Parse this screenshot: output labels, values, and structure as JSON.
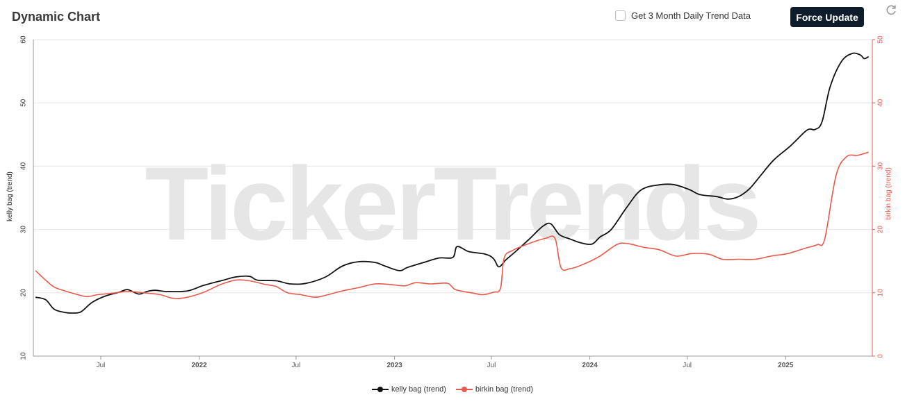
{
  "header": {
    "title": "Dynamic Chart",
    "checkbox_label": "Get 3 Month Daily Trend Data",
    "force_update_label": "Force Update"
  },
  "watermark": "TickerTrends",
  "colors": {
    "kelly": "#111111",
    "birkin": "#e8594a",
    "grid": "#e6e6e6"
  },
  "chart_data": {
    "type": "line",
    "title": "Dynamic Chart",
    "x_tick_labels": [
      "Jul",
      "2022",
      "Jul",
      "2023",
      "Jul",
      "2024",
      "Jul",
      "2025"
    ],
    "y_left": {
      "label": "kelly bag  (trend)",
      "ticks": [
        10,
        20,
        30,
        40,
        50,
        60
      ],
      "range": [
        10,
        60
      ]
    },
    "y_right": {
      "label": "birkin bag  (trend)",
      "ticks": [
        0,
        10,
        20,
        30,
        40,
        50
      ],
      "range": [
        0,
        50
      ]
    },
    "legend": "bottom-center",
    "series": [
      {
        "name": "kelly bag  (trend)",
        "axis": "left",
        "points": [
          [
            "2021-03-01",
            19.3
          ],
          [
            "2021-03-20",
            18.9
          ],
          [
            "2021-04-05",
            17.4
          ],
          [
            "2021-04-25",
            16.9
          ],
          [
            "2021-05-10",
            16.8
          ],
          [
            "2021-05-25",
            17.0
          ],
          [
            "2021-06-15",
            18.5
          ],
          [
            "2021-07-10",
            19.5
          ],
          [
            "2021-08-05",
            20.1
          ],
          [
            "2021-08-20",
            20.5
          ],
          [
            "2021-09-10",
            19.8
          ],
          [
            "2021-09-25",
            20.2
          ],
          [
            "2021-10-10",
            20.4
          ],
          [
            "2021-11-01",
            20.2
          ],
          [
            "2021-12-10",
            20.3
          ],
          [
            "2022-01-10",
            21.2
          ],
          [
            "2022-02-15",
            22.0
          ],
          [
            "2022-03-10",
            22.5
          ],
          [
            "2022-04-05",
            22.6
          ],
          [
            "2022-04-20",
            22.0
          ],
          [
            "2022-05-25",
            21.9
          ],
          [
            "2022-06-20",
            21.4
          ],
          [
            "2022-07-20",
            21.5
          ],
          [
            "2022-08-25",
            22.5
          ],
          [
            "2022-09-25",
            24.2
          ],
          [
            "2022-10-25",
            24.9
          ],
          [
            "2022-11-25",
            24.8
          ],
          [
            "2022-12-15",
            24.2
          ],
          [
            "2023-01-10",
            23.5
          ],
          [
            "2023-01-25",
            24.0
          ],
          [
            "2023-02-25",
            24.8
          ],
          [
            "2023-03-25",
            25.5
          ],
          [
            "2023-04-20",
            25.6
          ],
          [
            "2023-04-28",
            27.3
          ],
          [
            "2023-05-20",
            26.5
          ],
          [
            "2023-06-20",
            26.1
          ],
          [
            "2023-07-05",
            25.4
          ],
          [
            "2023-07-15",
            24.1
          ],
          [
            "2023-07-28",
            25.2
          ],
          [
            "2023-08-15",
            26.5
          ],
          [
            "2023-09-10",
            28.5
          ],
          [
            "2023-10-05",
            30.5
          ],
          [
            "2023-10-20",
            30.9
          ],
          [
            "2023-11-05",
            29.2
          ],
          [
            "2023-11-25",
            28.5
          ],
          [
            "2023-12-15",
            27.9
          ],
          [
            "2024-01-05",
            27.7
          ],
          [
            "2024-01-20",
            28.8
          ],
          [
            "2024-02-10",
            30.0
          ],
          [
            "2024-03-10",
            33.5
          ],
          [
            "2024-04-05",
            36.2
          ],
          [
            "2024-05-05",
            37.0
          ],
          [
            "2024-06-05",
            37.1
          ],
          [
            "2024-07-05",
            36.3
          ],
          [
            "2024-07-25",
            35.5
          ],
          [
            "2024-08-25",
            35.2
          ],
          [
            "2024-09-15",
            34.8
          ],
          [
            "2024-10-05",
            35.2
          ],
          [
            "2024-10-25",
            36.4
          ],
          [
            "2024-11-15",
            38.5
          ],
          [
            "2024-12-10",
            41.0
          ],
          [
            "2025-01-10",
            43.2
          ],
          [
            "2025-02-10",
            45.7
          ],
          [
            "2025-02-25",
            45.8
          ],
          [
            "2025-03-10",
            47.0
          ],
          [
            "2025-03-25",
            52.5
          ],
          [
            "2025-04-15",
            56.5
          ],
          [
            "2025-05-05",
            57.8
          ],
          [
            "2025-05-20",
            57.6
          ],
          [
            "2025-05-28",
            57.0
          ],
          [
            "2025-06-05",
            57.3
          ]
        ]
      },
      {
        "name": "birkin bag  (trend)",
        "axis": "right",
        "points": [
          [
            "2021-03-01",
            13.5
          ],
          [
            "2021-03-20",
            12.0
          ],
          [
            "2021-04-05",
            10.9
          ],
          [
            "2021-04-25",
            10.3
          ],
          [
            "2021-05-15",
            9.8
          ],
          [
            "2021-06-05",
            9.4
          ],
          [
            "2021-06-25",
            9.7
          ],
          [
            "2021-07-20",
            9.9
          ],
          [
            "2021-08-20",
            10.2
          ],
          [
            "2021-09-20",
            10.0
          ],
          [
            "2021-10-20",
            9.7
          ],
          [
            "2021-11-15",
            9.1
          ],
          [
            "2021-12-10",
            9.3
          ],
          [
            "2022-01-10",
            10.1
          ],
          [
            "2022-02-10",
            11.3
          ],
          [
            "2022-03-10",
            12.0
          ],
          [
            "2022-04-05",
            11.9
          ],
          [
            "2022-05-05",
            11.3
          ],
          [
            "2022-05-25",
            11.0
          ],
          [
            "2022-06-15",
            10.0
          ],
          [
            "2022-07-10",
            9.7
          ],
          [
            "2022-08-05",
            9.3
          ],
          [
            "2022-08-25",
            9.6
          ],
          [
            "2022-09-25",
            10.3
          ],
          [
            "2022-10-25",
            10.8
          ],
          [
            "2022-11-25",
            11.4
          ],
          [
            "2022-12-25",
            11.3
          ],
          [
            "2023-01-20",
            11.1
          ],
          [
            "2023-02-10",
            11.6
          ],
          [
            "2023-03-10",
            11.4
          ],
          [
            "2023-04-10",
            11.5
          ],
          [
            "2023-04-25",
            10.5
          ],
          [
            "2023-05-25",
            10.0
          ],
          [
            "2023-06-15",
            9.7
          ],
          [
            "2023-07-05",
            10.1
          ],
          [
            "2023-07-18",
            10.7
          ],
          [
            "2023-07-25",
            15.5
          ],
          [
            "2023-08-10",
            16.7
          ],
          [
            "2023-09-10",
            17.8
          ],
          [
            "2023-10-10",
            18.6
          ],
          [
            "2023-10-28",
            18.6
          ],
          [
            "2023-11-08",
            14.0
          ],
          [
            "2023-11-25",
            13.8
          ],
          [
            "2023-12-20",
            14.5
          ],
          [
            "2024-01-20",
            15.8
          ],
          [
            "2024-02-20",
            17.6
          ],
          [
            "2024-03-10",
            17.8
          ],
          [
            "2024-04-10",
            17.2
          ],
          [
            "2024-05-10",
            16.8
          ],
          [
            "2024-06-10",
            15.8
          ],
          [
            "2024-07-10",
            16.2
          ],
          [
            "2024-08-10",
            16.1
          ],
          [
            "2024-09-05",
            15.3
          ],
          [
            "2024-10-05",
            15.3
          ],
          [
            "2024-11-05",
            15.3
          ],
          [
            "2024-12-05",
            15.8
          ],
          [
            "2025-01-05",
            16.2
          ],
          [
            "2025-02-05",
            17.0
          ],
          [
            "2025-03-01",
            17.6
          ],
          [
            "2025-03-15",
            18.5
          ],
          [
            "2025-04-05",
            28.5
          ],
          [
            "2025-04-25",
            31.5
          ],
          [
            "2025-05-15",
            31.7
          ],
          [
            "2025-06-05",
            32.2
          ]
        ]
      }
    ]
  }
}
